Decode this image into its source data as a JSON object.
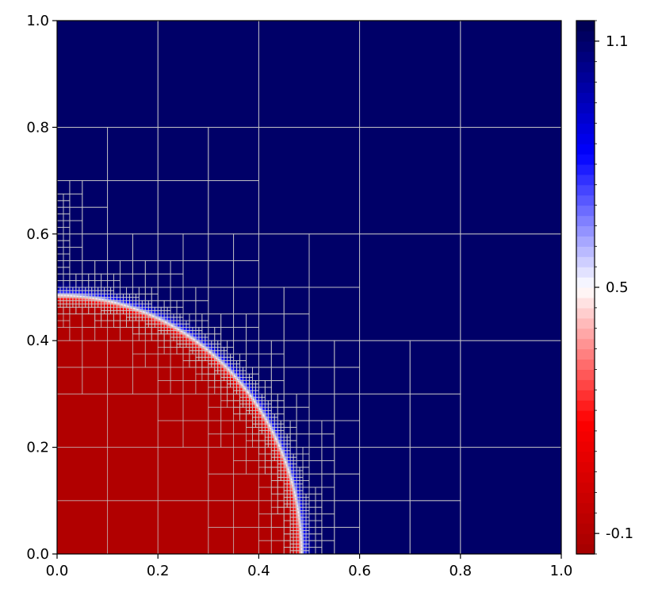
{
  "chart_data": {
    "type": "heatmap",
    "title": "",
    "xlabel": "",
    "ylabel": "",
    "xlim": [
      0.0,
      1.0
    ],
    "ylim": [
      0.0,
      1.0
    ],
    "x_ticks": [
      "0.0",
      "0.2",
      "0.4",
      "0.6",
      "0.8",
      "1.0"
    ],
    "y_ticks": [
      "0.0",
      "0.2",
      "0.4",
      "0.6",
      "0.8",
      "1.0"
    ],
    "field": {
      "shape": "quarter-circle",
      "center": [
        0.0,
        0.0
      ],
      "radius": 0.485,
      "interface_width": 0.012,
      "inside_value": -0.1,
      "outside_value": 1.1
    },
    "mesh": {
      "grid_color": "#c8c8c8",
      "max_level": 6,
      "domain_cells": 5
    },
    "colorbar": {
      "vmin": -0.15,
      "vmax": 1.15,
      "colormap": "seismic_r",
      "ticks": [
        {
          "value": -0.1,
          "label": "-0.1"
        },
        {
          "value": 0.5,
          "label": "0.5"
        },
        {
          "value": 1.1,
          "label": "1.1"
        }
      ],
      "levels": 52
    },
    "colors": {
      "inside": "#a30000",
      "outside": "#00004d",
      "mid": "#ffffff"
    }
  }
}
